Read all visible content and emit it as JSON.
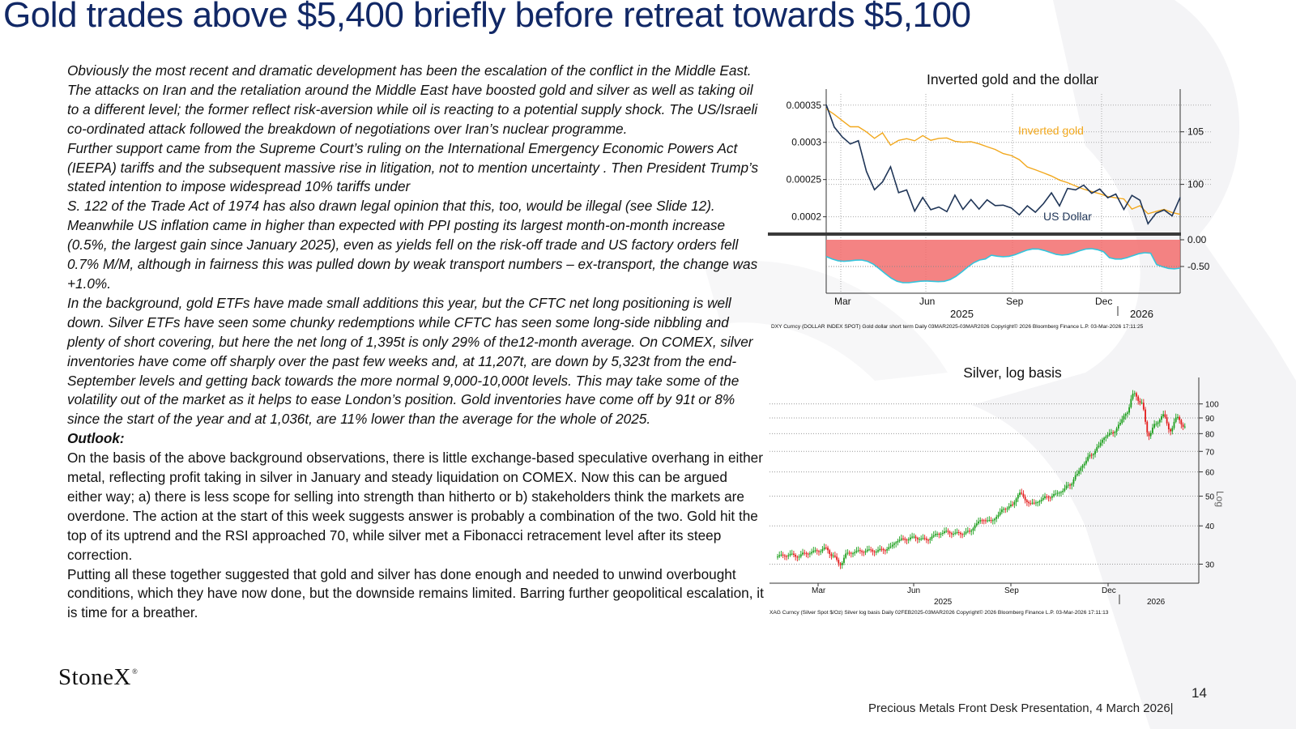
{
  "title": "Gold trades above $5,400 briefly before retreat towards $5,100",
  "paragraphs": [
    {
      "style": "italic",
      "text": "Obviously the most recent and dramatic development has been the escalation of the conflict in the Middle East.  The attacks on Iran and the retaliation around the Middle East have boosted gold and silver as well as taking oil to a different level; the former reflect risk-aversion while oil is reacting to a potential supply shock.  The US/Israeli co-ordinated attack followed the breakdown of negotiations over Iran’s nuclear programme."
    },
    {
      "style": "italic",
      "text": "Further support came from the Supreme Court’s ruling on the International Emergency Economic Powers Act (IEEPA) tariffs and the subsequent massive rise in litigation, not to mention uncertainty . Then President Trump’s stated intention to impose widespread 10% tariffs under"
    },
    {
      "style": "italic",
      "text": "S. 122 of the Trade Act of 1974 has also drawn legal opinion that this, too, would be illegal (see Slide 12). Meanwhile US inflation came in higher than expected with PPI posting its largest month-on-month increase (0.5%, the largest gain since January 2025), even as yields fell on the risk-off trade and US factory orders fell 0.7% M/M, although in fairness this was pulled down by weak transport numbers – ex-transport, the change was +1.0%."
    },
    {
      "style": "italic",
      "text": "In the background, gold ETFs have made small additions this year, but the CFTC net long positioning is well down.  Silver ETFs have seen some chunky redemptions while CFTC has seen some long-side nibbling and plenty of short covering, but here the net long of 1,395t is only 29% of the12-month average.  On COMEX, silver inventories have come off sharply over the past few weeks and, at 11,207t, are down by 5,323t from the end-September levels and getting back towards the more normal 9,000-10,000t levels.  This may take some of the volatility out of the market as it helps to ease London’s position.  Gold inventories have come off by 91t or 8% since the start of the year and at 1,036t, are 11% lower than the average for the whole of 2025."
    },
    {
      "style": "heading",
      "text": "Outlook:"
    },
    {
      "style": "normal",
      "text": "On the basis of the above background observations, there is little exchange-based speculative overhang in either metal, reflecting profit taking in silver in January and steady liquidation on COMEX.  Now this can be argued either way; a) there is less scope for selling into strength than hitherto or b) stakeholders think the markets are overdone.  The action at the start of this week suggests answer is probably a combination of the two.  Gold hit the top of its uptrend and the RSI approached 70, while silver met a Fibonacci retracement level after its steep correction."
    },
    {
      "style": "normal",
      "text": "Putting all these together suggested that gold and silver has done enough and needed to unwind overbought conditions, which they have now done,  but the downside remains limited.  Barring further geopolitical escalation, it is time for a breather."
    }
  ],
  "footer": {
    "logo": "StoneX",
    "logo_mark": "®",
    "page_number": "14",
    "caption": "Precious Metals Front Desk Presentation, 4 March 2026|"
  },
  "chart_data": [
    {
      "type": "line",
      "title": "Inverted gold and the dollar",
      "x_ticks": [
        "Mar",
        "Jun",
        "Sep",
        "Dec"
      ],
      "year_labels": [
        "2025",
        "2026"
      ],
      "left_axis": {
        "ticks": [
          "0.00035",
          "0.0003",
          "0.00025",
          "0.0002"
        ],
        "ylim": [
          0.00018,
          0.000365
        ]
      },
      "right_axis": {
        "ticks": [
          "105",
          "100"
        ],
        "ylim": [
          95.5,
          108.6
        ]
      },
      "lower_panel": {
        "ticks": [
          "0.00",
          "-0.50"
        ],
        "fill_color": "#f26d6d",
        "line_color": "#33c5dd"
      },
      "colors": {
        "gold": "#f2a81d",
        "dollar": "#1f3557"
      },
      "series": [
        {
          "name": "Inverted gold",
          "axis": "left",
          "values": [
            0.000345,
            0.000338,
            0.00033,
            0.000322,
            0.000322,
            0.000315,
            0.000306,
            0.000313,
            0.000296,
            0.000302,
            0.000304,
            0.000301,
            0.000308,
            0.000302,
            0.000305,
            0.000306,
            0.000302,
            0.000301,
            0.000302,
            0.000299,
            0.000295,
            0.000291,
            0.000285,
            0.000282,
            0.000276,
            0.000266,
            0.000262,
            0.000258,
            0.000254,
            0.000249,
            0.000246,
            0.000242,
            0.000238,
            0.000235,
            0.000232,
            0.000228,
            0.000226,
            0.000224,
            0.00021,
            0.000214,
            0.000203,
            0.000206,
            0.000209,
            0.000205,
            0.000203
          ]
        },
        {
          "name": "US Dollar",
          "axis": "right",
          "values": [
            107.6,
            105.4,
            104.4,
            103.7,
            104.0,
            101.1,
            99.4,
            100.2,
            101.7,
            99.3,
            99.6,
            97.6,
            98.9,
            97.7,
            97.9,
            97.4,
            98.9,
            97.5,
            98.4,
            97.5,
            98.4,
            97.9,
            98.0,
            97.8,
            97.2,
            98.1,
            97.5,
            98.3,
            99.3,
            98.0,
            99.6,
            99.4,
            99.8,
            99.0,
            99.4,
            98.6,
            99.0,
            97.6,
            99.0,
            98.6,
            96.4,
            97.4,
            97.7,
            97.1,
            98.8
          ]
        }
      ],
      "source": "DXY Curncy (DOLLAR INDEX SPOT) Gold dollar short term Daily 03MAR2025-03MAR2026     Copyright© 2026 Bloomberg Finance L.P.     03-Mar-2026 17:11:25"
    },
    {
      "type": "candlestick",
      "title": "Silver, log basis",
      "scale": "log",
      "ylim": [
        26,
        122
      ],
      "y_ticks": [
        "100",
        "90",
        "80",
        "70",
        "60",
        "50",
        "40",
        "30"
      ],
      "y_axis_label": "Log",
      "x_ticks": [
        "Mar",
        "Jun",
        "Sep",
        "Dec"
      ],
      "year_labels": [
        "2025",
        "2026"
      ],
      "colors": {
        "up": "#1a9e1a",
        "down": "#e31b1b"
      },
      "series": [
        {
          "name": "close",
          "values": [
            32.0,
            32.2,
            31.8,
            32.5,
            32.7,
            33.2,
            33.8,
            31.9,
            30.0,
            32.5,
            32.8,
            33.1,
            33.3,
            33.0,
            33.5,
            34.0,
            35.8,
            36.2,
            36.6,
            36.4,
            36.1,
            37.0,
            37.9,
            38.3,
            37.7,
            37.8,
            38.3,
            40.5,
            42.0,
            41.4,
            43.2,
            45.8,
            46.7,
            51.2,
            48.2,
            47.2,
            48.6,
            49.8,
            50.6,
            52.1,
            54.5,
            58.7,
            64.0,
            68.3,
            72.5,
            78.6,
            80.4,
            86.1,
            94.2,
            108.5,
            100.2,
            79.0,
            86.0,
            92.0,
            82.0,
            90.4,
            84.0
          ]
        }
      ],
      "source": "XAG Curncy (Silver Spot $/Oz) Silver log basis Daily 02FEB2025-03MAR2026     Copyright© 2026 Bloomberg Finance L.P.     03-Mar-2026 17:11:13"
    }
  ]
}
